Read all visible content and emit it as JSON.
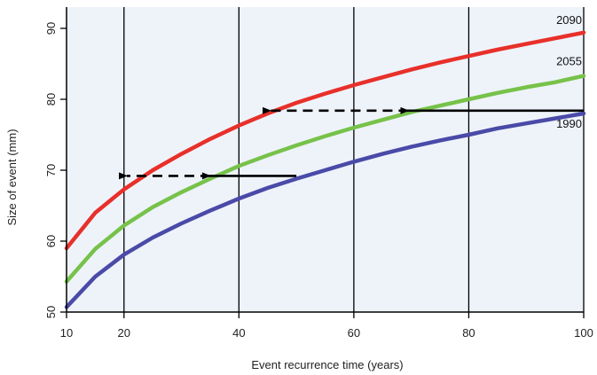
{
  "chart_data": {
    "type": "line",
    "title": "",
    "xlabel": "Event recurrence time (years)",
    "ylabel": "Size of event (mm)",
    "xlim": [
      10,
      100
    ],
    "ylim": [
      50,
      93
    ],
    "x_ticks": [
      10,
      20,
      40,
      60,
      80,
      100
    ],
    "y_ticks": [
      50,
      60,
      70,
      80,
      90
    ],
    "vertical_gridlines_at": [
      20,
      40,
      60,
      80,
      100
    ],
    "background": "#eef3fa",
    "series": [
      {
        "name": "1990",
        "color": "#4a4aa8",
        "x": [
          10,
          15,
          20,
          25,
          30,
          35,
          40,
          45,
          50,
          55,
          60,
          65,
          70,
          75,
          80,
          85,
          90,
          95,
          100
        ],
        "y": [
          50.7,
          55.0,
          58.1,
          60.5,
          62.5,
          64.3,
          66.0,
          67.5,
          68.8,
          70.0,
          71.2,
          72.3,
          73.3,
          74.2,
          75.0,
          75.9,
          76.6,
          77.3,
          78.0
        ]
      },
      {
        "name": "2055",
        "color": "#77c24a",
        "x": [
          10,
          15,
          20,
          25,
          30,
          35,
          40,
          45,
          50,
          55,
          60,
          65,
          70,
          75,
          80,
          85,
          90,
          95,
          100
        ],
        "y": [
          54.3,
          58.9,
          62.2,
          64.8,
          66.9,
          68.8,
          70.6,
          72.1,
          73.5,
          74.8,
          76.0,
          77.1,
          78.2,
          79.1,
          80.0,
          80.9,
          81.7,
          82.4,
          83.3
        ]
      },
      {
        "name": "2090",
        "color": "#e8302a",
        "x": [
          10,
          15,
          20,
          25,
          30,
          35,
          40,
          45,
          50,
          55,
          60,
          65,
          70,
          75,
          80,
          85,
          90,
          95,
          100
        ],
        "y": [
          59.0,
          64.0,
          67.3,
          70.0,
          72.3,
          74.4,
          76.3,
          78.0,
          79.5,
          80.8,
          82.0,
          83.1,
          84.2,
          85.2,
          86.1,
          87.0,
          87.8,
          88.6,
          89.4
        ]
      }
    ],
    "annotations": {
      "arrows": [
        {
          "style": "solid",
          "x_from": 50,
          "x_to": 35,
          "y": 69.2
        },
        {
          "style": "dashed",
          "x_from": 35,
          "x_to": 20.5,
          "y": 69.2
        },
        {
          "style": "solid",
          "x_from": 100,
          "x_to": 69.5,
          "y": 78.4
        },
        {
          "style": "dashed",
          "x_from": 69.5,
          "x_to": 45.5,
          "y": 78.4
        }
      ]
    }
  }
}
